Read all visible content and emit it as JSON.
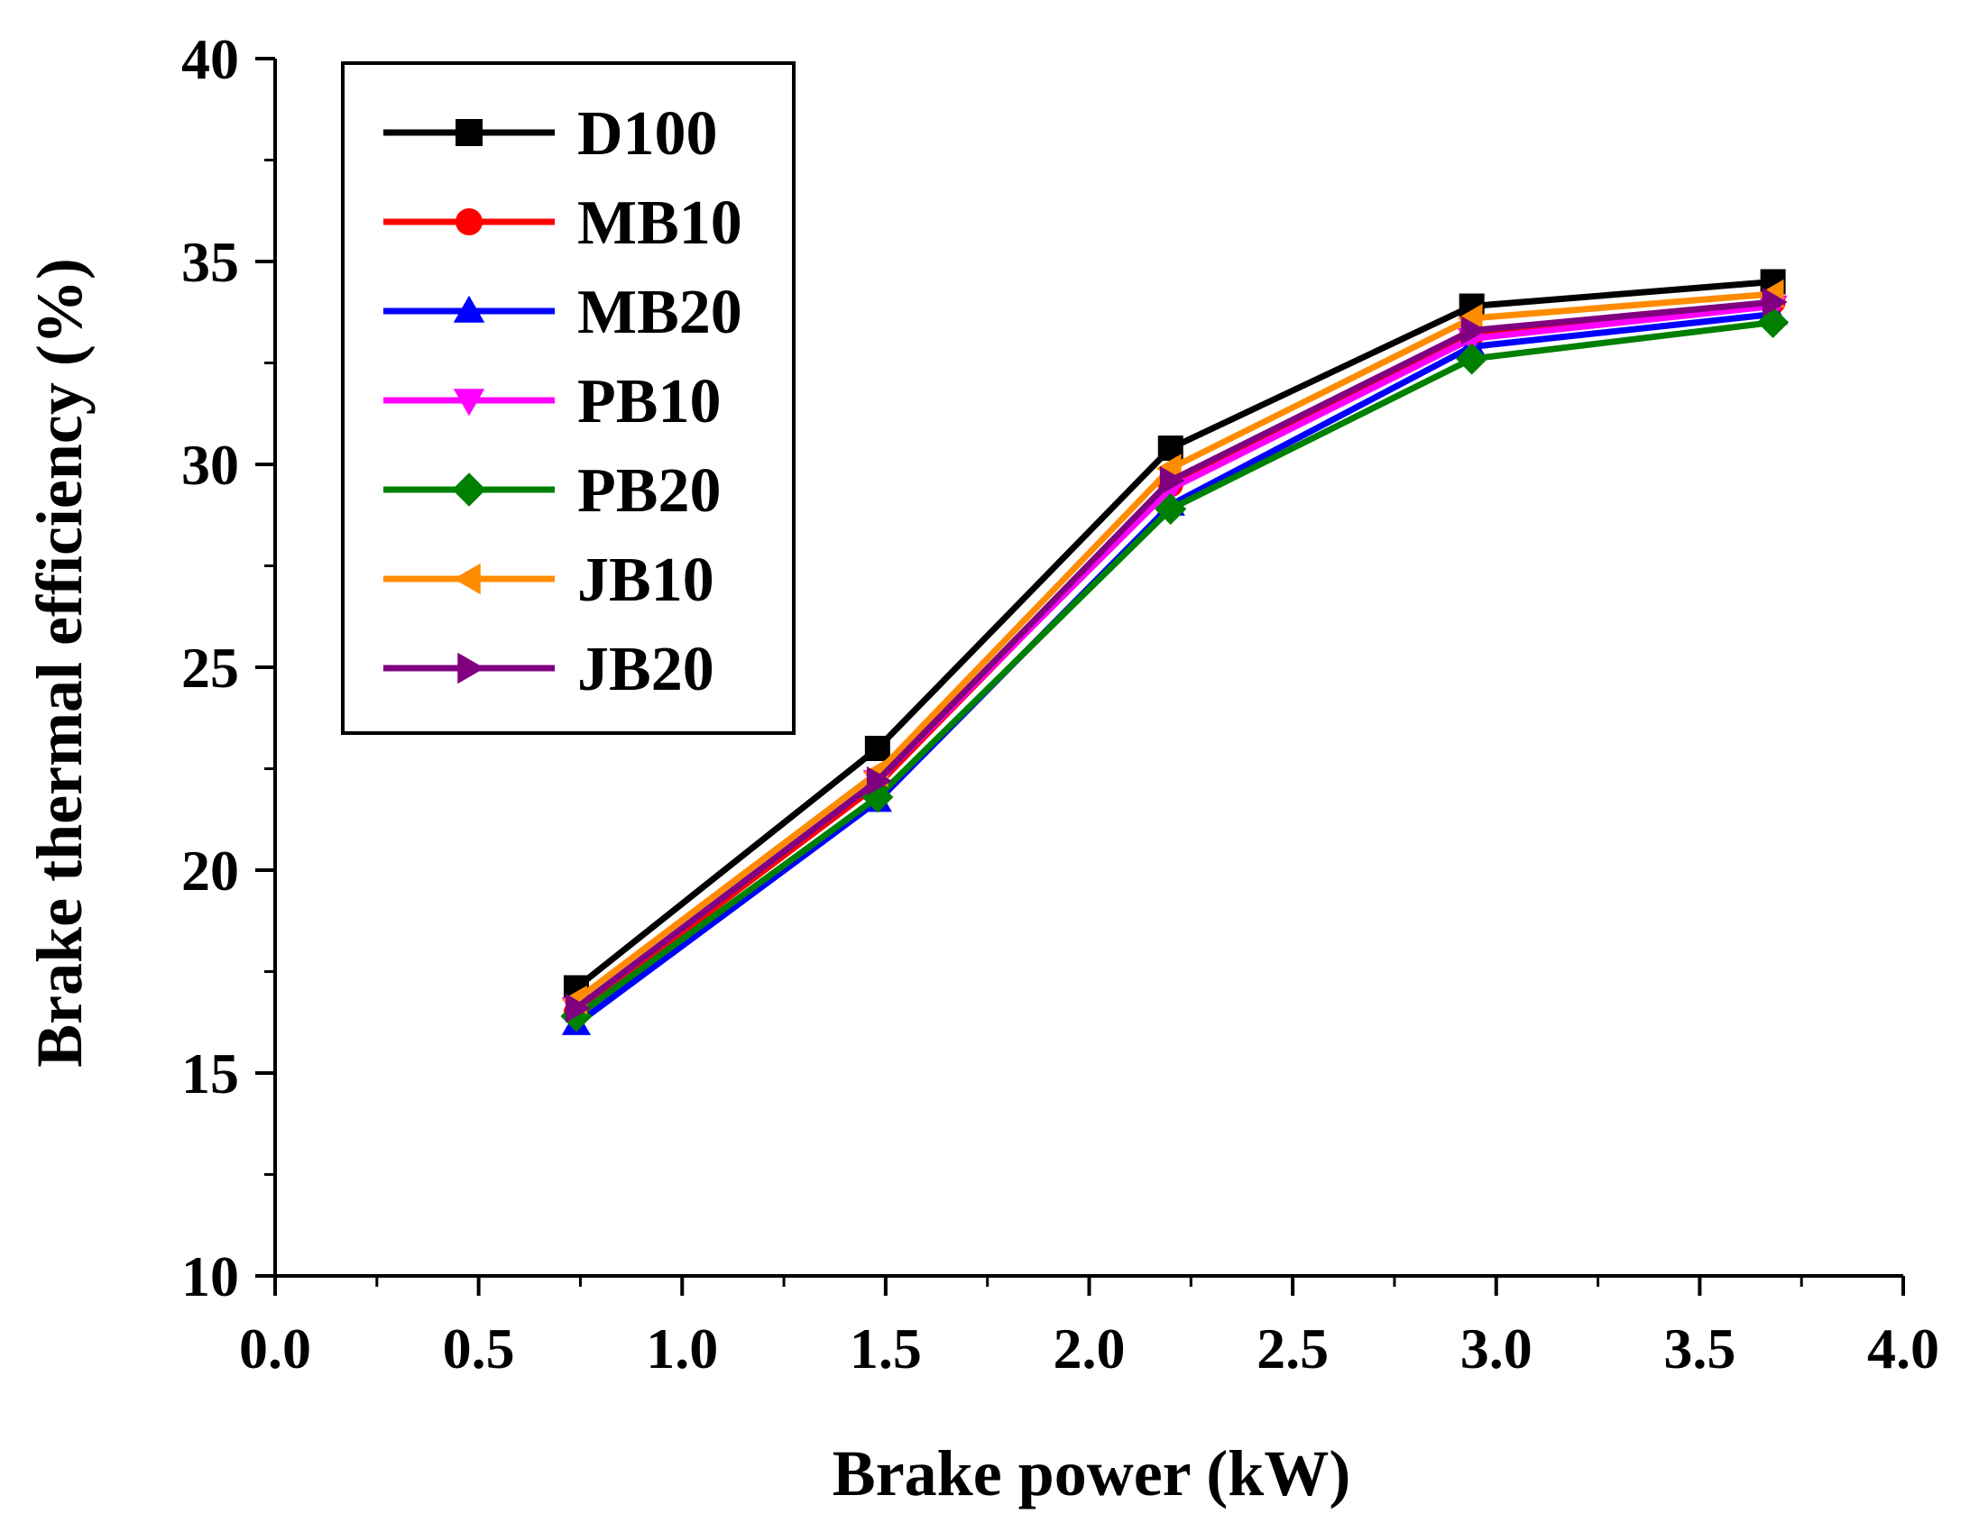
{
  "chart_data": {
    "type": "line",
    "xlabel": "Brake power (kW)",
    "ylabel": "Brake thermal efficiency (%)",
    "xlim": [
      0.0,
      4.0
    ],
    "ylim": [
      10,
      40
    ],
    "x_ticks": [
      "0.0",
      "0.5",
      "1.0",
      "1.5",
      "2.0",
      "2.5",
      "3.0",
      "3.5",
      "4.0"
    ],
    "y_ticks": [
      "10",
      "15",
      "20",
      "25",
      "30",
      "35",
      "40"
    ],
    "grid": false,
    "legend_position": "top-left",
    "x": [
      0.74,
      1.48,
      2.2,
      2.94,
      3.68
    ],
    "series": [
      {
        "name": "D100",
        "color": "#000000",
        "marker": "square",
        "values": [
          17.1,
          23.0,
          30.4,
          33.9,
          34.5
        ]
      },
      {
        "name": "MB10",
        "color": "#ff0000",
        "marker": "circle",
        "values": [
          16.5,
          22.1,
          29.5,
          33.2,
          34.0
        ]
      },
      {
        "name": "MB20",
        "color": "#0000ff",
        "marker": "triangle-up",
        "values": [
          16.2,
          21.7,
          29.0,
          32.9,
          33.7
        ]
      },
      {
        "name": "PB10",
        "color": "#ff00ff",
        "marker": "triangle-down",
        "values": [
          16.6,
          22.2,
          29.4,
          33.1,
          33.9
        ]
      },
      {
        "name": "PB20",
        "color": "#008000",
        "marker": "diamond",
        "values": [
          16.4,
          21.8,
          28.9,
          32.6,
          33.5
        ]
      },
      {
        "name": "JB10",
        "color": "#ff8c00",
        "marker": "triangle-left",
        "values": [
          16.8,
          22.4,
          29.9,
          33.6,
          34.2
        ]
      },
      {
        "name": "JB20",
        "color": "#800080",
        "marker": "triangle-right",
        "values": [
          16.6,
          22.2,
          29.6,
          33.3,
          34.0
        ]
      }
    ]
  }
}
